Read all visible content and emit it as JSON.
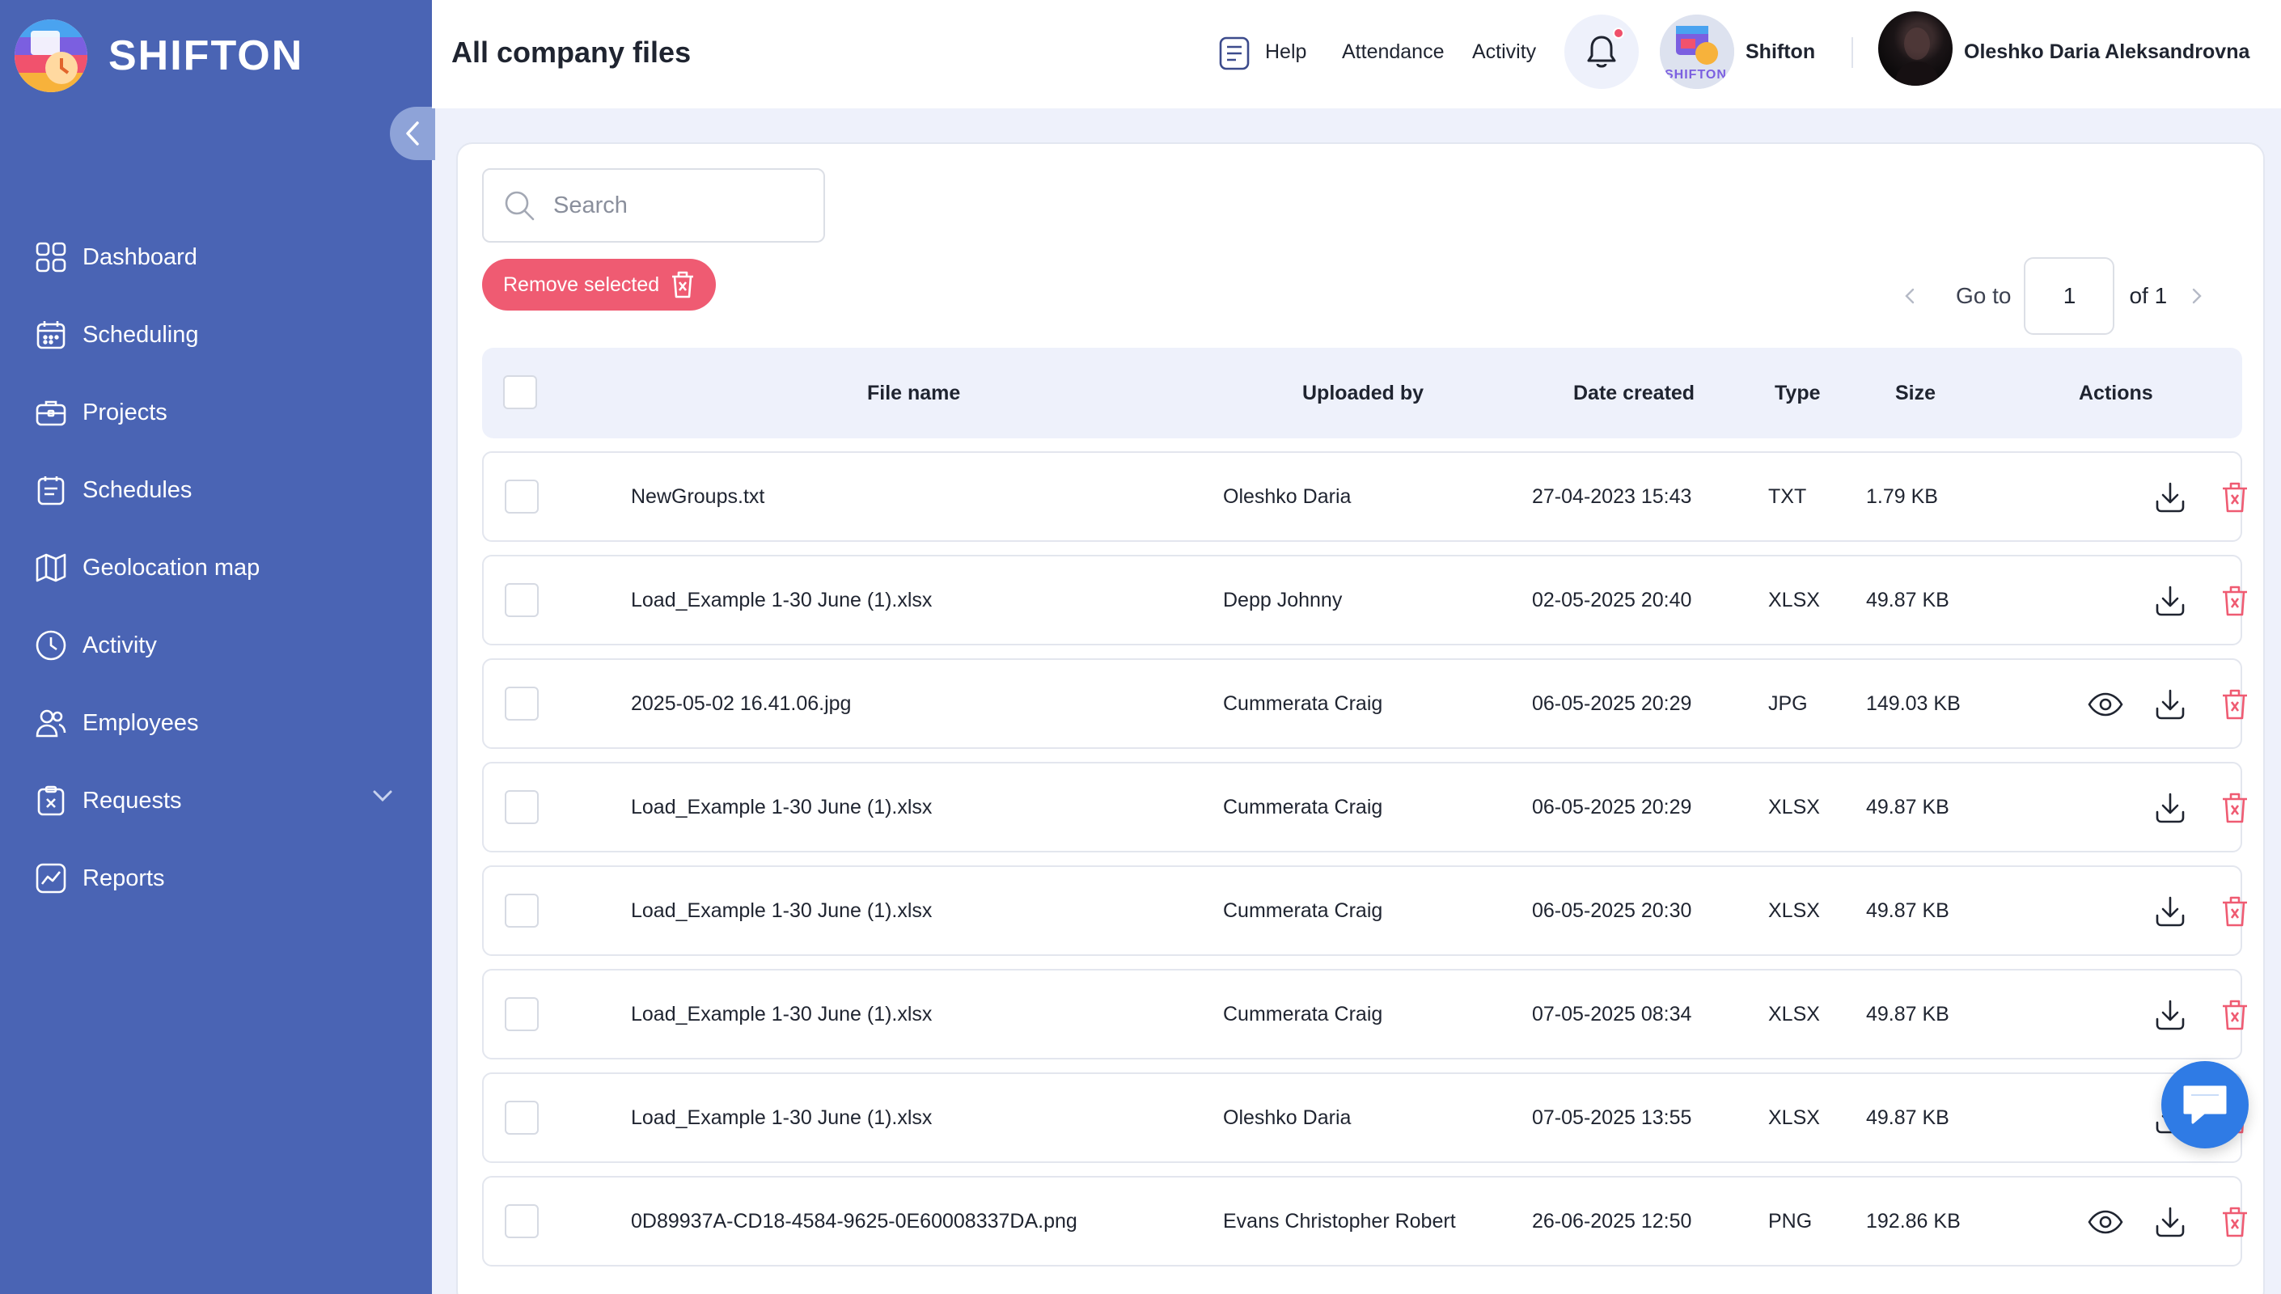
{
  "brand": {
    "name": "SHIFTON"
  },
  "sidebar": {
    "items": [
      {
        "label": "Dashboard",
        "icon": "dashboard-icon"
      },
      {
        "label": "Scheduling",
        "icon": "calendar-icon"
      },
      {
        "label": "Projects",
        "icon": "briefcase-icon"
      },
      {
        "label": "Schedules",
        "icon": "schedule-list-icon"
      },
      {
        "label": "Geolocation map",
        "icon": "map-icon"
      },
      {
        "label": "Activity",
        "icon": "clock-icon"
      },
      {
        "label": "Employees",
        "icon": "users-icon"
      },
      {
        "label": "Requests",
        "icon": "clipboard-icon",
        "expandable": true
      },
      {
        "label": "Reports",
        "icon": "chart-icon"
      }
    ]
  },
  "header": {
    "title": "All company files",
    "help": "Help",
    "attendance": "Attendance",
    "activity": "Activity",
    "company": "Shifton",
    "company_avatar_text": "SHIFTON",
    "user": "Oleshko Daria Aleksandrovna"
  },
  "toolbar": {
    "search_placeholder": "Search",
    "remove_selected": "Remove selected"
  },
  "pagination": {
    "goto_label": "Go to",
    "current": "1",
    "of_label": "of 1"
  },
  "table": {
    "columns": {
      "file_name": "File name",
      "uploaded_by": "Uploaded by",
      "date_created": "Date created",
      "type": "Type",
      "size": "Size",
      "actions": "Actions"
    },
    "rows": [
      {
        "file": "NewGroups.txt",
        "by": "Oleshko Daria",
        "date": "27-04-2023 15:43",
        "type": "TXT",
        "size": "1.79 KB",
        "preview": false
      },
      {
        "file": "Load_Example 1-30 June (1).xlsx",
        "by": "Depp Johnny",
        "date": "02-05-2025 20:40",
        "type": "XLSX",
        "size": "49.87 KB",
        "preview": false
      },
      {
        "file": "2025-05-02 16.41.06.jpg",
        "by": "Cummerata Craig",
        "date": "06-05-2025 20:29",
        "type": "JPG",
        "size": "149.03 KB",
        "preview": true
      },
      {
        "file": "Load_Example 1-30 June (1).xlsx",
        "by": "Cummerata Craig",
        "date": "06-05-2025 20:29",
        "type": "XLSX",
        "size": "49.87 KB",
        "preview": false
      },
      {
        "file": "Load_Example 1-30 June (1).xlsx",
        "by": "Cummerata Craig",
        "date": "06-05-2025 20:30",
        "type": "XLSX",
        "size": "49.87 KB",
        "preview": false
      },
      {
        "file": "Load_Example 1-30 June (1).xlsx",
        "by": "Cummerata Craig",
        "date": "07-05-2025 08:34",
        "type": "XLSX",
        "size": "49.87 KB",
        "preview": false
      },
      {
        "file": "Load_Example 1-30 June (1).xlsx",
        "by": "Oleshko Daria",
        "date": "07-05-2025 13:55",
        "type": "XLSX",
        "size": "49.87 KB",
        "preview": false
      },
      {
        "file": "0D89937A-CD18-4584-9625-0E60008337DA.png",
        "by": "Evans Christopher Robert",
        "date": "26-06-2025 12:50",
        "type": "PNG",
        "size": "192.86 KB",
        "preview": true
      }
    ]
  },
  "colors": {
    "sidebar": "#4a64b4",
    "danger": "#ef5b72",
    "chat": "#2f7be5",
    "header_bg": "#eef1fb"
  }
}
